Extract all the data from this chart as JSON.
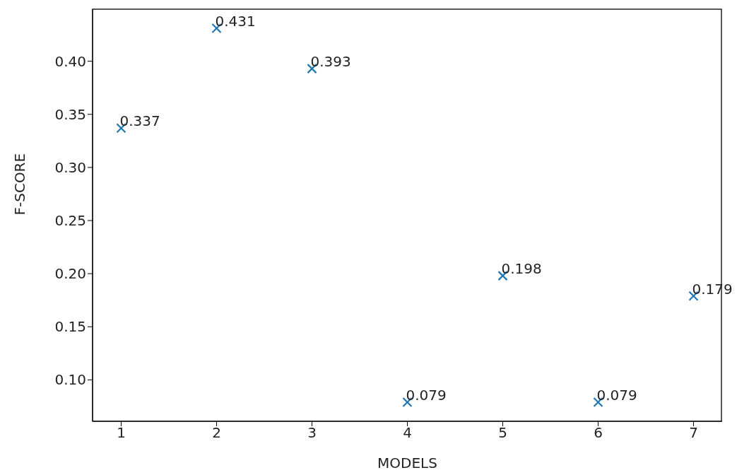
{
  "chart_data": {
    "type": "scatter",
    "xlabel": "MODELS",
    "ylabel": "F-SCORE",
    "x": [
      1,
      2,
      3,
      4,
      5,
      6,
      7
    ],
    "series": [
      {
        "color": "#1f77b4",
        "values": [
          0.337,
          0.431,
          0.393,
          0.079,
          0.198,
          0.079,
          0.179
        ]
      }
    ],
    "xlim": [
      0.7,
      7.3
    ],
    "xticks": [
      1,
      2,
      3,
      4,
      5,
      6,
      7
    ],
    "ylim": [
      0.061,
      0.449
    ],
    "yticks": [
      {
        "value": 0.1,
        "label": "0.10"
      },
      {
        "value": 0.15,
        "label": "0.15"
      },
      {
        "value": 0.2,
        "label": "0.20"
      },
      {
        "value": 0.25,
        "label": "0.25"
      },
      {
        "value": 0.3,
        "label": "0.30"
      },
      {
        "value": 0.35,
        "label": "0.35"
      },
      {
        "value": 0.4,
        "label": "0.40"
      }
    ],
    "marker": "cross",
    "data_labels": true
  }
}
